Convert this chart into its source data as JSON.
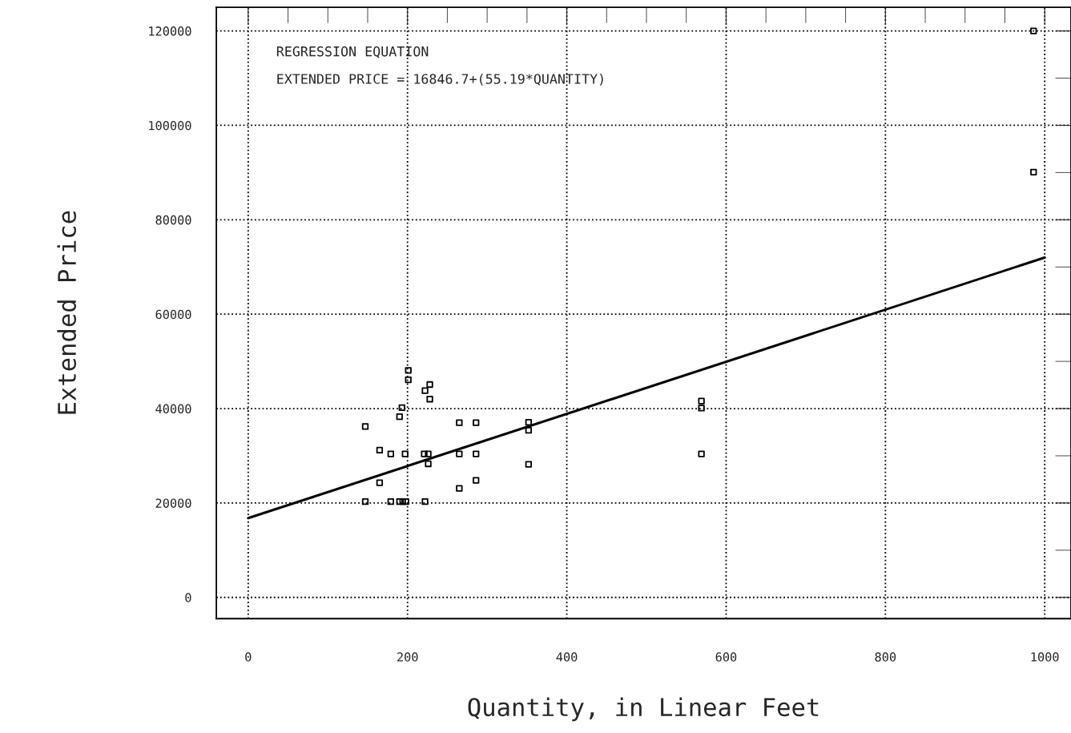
{
  "chart_data": {
    "type": "scatter",
    "xlabel": "Quantity, in Linear Feet",
    "ylabel": "Extended Price",
    "annotations": [
      "REGRESSION EQUATION",
      "EXTENDED PRICE = 16846.7+(55.19*QUANTITY)"
    ],
    "series": [
      {
        "color": "#000000",
        "marker": "square",
        "x": [
          201,
          201,
          228,
          222,
          228,
          193,
          190,
          147,
          265,
          286,
          352,
          352,
          165,
          179,
          197,
          221,
          226,
          226,
          265,
          286,
          352,
          165,
          286,
          265,
          147,
          179,
          190,
          194,
          198,
          222,
          569,
          569,
          569,
          986,
          986
        ],
        "values": [
          48100,
          46100,
          45100,
          43800,
          42000,
          40200,
          38300,
          36200,
          37000,
          37000,
          37100,
          35400,
          31200,
          30400,
          30400,
          30400,
          30400,
          28300,
          30400,
          30400,
          28200,
          24300,
          24800,
          23100,
          20300,
          20300,
          20300,
          20300,
          20300,
          20300,
          41600,
          40100,
          30400,
          120000,
          90100
        ]
      },
      {
        "type": "line",
        "color": "#000000",
        "x": [
          0,
          1000
        ],
        "values": [
          16800,
          72000
        ]
      }
    ],
    "xlim": [
      -40,
      1033
    ],
    "ylim": [
      -4500,
      125000
    ],
    "xticks": [
      0,
      200,
      400,
      600,
      800,
      1000
    ],
    "yticks": [
      0,
      20000,
      40000,
      60000,
      80000,
      100000,
      120000
    ],
    "grid": true,
    "legend": false
  }
}
